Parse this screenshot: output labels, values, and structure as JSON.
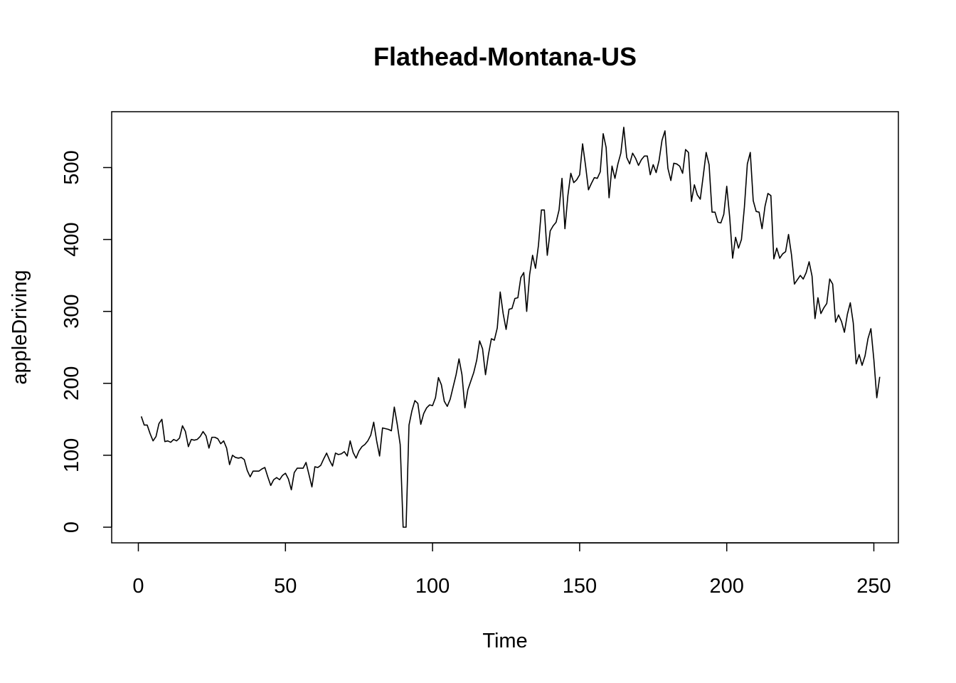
{
  "chart_data": {
    "type": "line",
    "title": "Flathead-Montana-US",
    "xlabel": "Time",
    "ylabel": "appleDriving",
    "xlim": [
      1,
      248
    ],
    "ylim": [
      0,
      556
    ],
    "grid": false,
    "x_ticks": [
      0,
      50,
      100,
      150,
      200,
      250
    ],
    "y_ticks": [
      0,
      100,
      200,
      300,
      400,
      500
    ],
    "series": [
      {
        "color": "#000000",
        "x_start": 1,
        "values": [
          154,
          142,
          142,
          130,
          120,
          126,
          144,
          150,
          119,
          120,
          118,
          122,
          120,
          124,
          141,
          133,
          112,
          122,
          121,
          122,
          126,
          133,
          127,
          110,
          125,
          125,
          123,
          116,
          120,
          110,
          87,
          100,
          97,
          96,
          97,
          94,
          79,
          70,
          78,
          78,
          78,
          81,
          83,
          70,
          58,
          66,
          69,
          66,
          72,
          75,
          67,
          52,
          76,
          82,
          82,
          82,
          90,
          73,
          56,
          84,
          83,
          86,
          95,
          103,
          93,
          85,
          103,
          101,
          102,
          105,
          99,
          120,
          104,
          96,
          106,
          112,
          115,
          120,
          128,
          146,
          120,
          99,
          138,
          137,
          136,
          134,
          167,
          143,
          115,
          0,
          0,
          142,
          162,
          176,
          172,
          143,
          158,
          166,
          170,
          169,
          180,
          208,
          198,
          175,
          168,
          178,
          195,
          212,
          234,
          212,
          166,
          191,
          203,
          215,
          232,
          259,
          248,
          212,
          240,
          262,
          260,
          277,
          327,
          297,
          275,
          303,
          304,
          318,
          319,
          347,
          354,
          300,
          351,
          378,
          360,
          392,
          441,
          441,
          378,
          412,
          419,
          424,
          441,
          485,
          415,
          461,
          492,
          479,
          483,
          490,
          533,
          503,
          469,
          478,
          486,
          485,
          494,
          547,
          528,
          458,
          502,
          485,
          505,
          520,
          556,
          514,
          505,
          520,
          513,
          503,
          511,
          516,
          516,
          490,
          504,
          493,
          510,
          538,
          551,
          499,
          482,
          506,
          505,
          502,
          492,
          525,
          521,
          453,
          476,
          462,
          456,
          488,
          521,
          504,
          438,
          438,
          424,
          423,
          435,
          474,
          431,
          374,
          403,
          388,
          400,
          445,
          505,
          521,
          454,
          439,
          438,
          415,
          446,
          464,
          461,
          373,
          388,
          374,
          380,
          383,
          407,
          379,
          338,
          344,
          350,
          345,
          354,
          369,
          349,
          290,
          319,
          297,
          305,
          311,
          345,
          338,
          285,
          295,
          286,
          271,
          296,
          312,
          284,
          227,
          240,
          225,
          238,
          262,
          276,
          233,
          180,
          209
        ]
      }
    ]
  }
}
